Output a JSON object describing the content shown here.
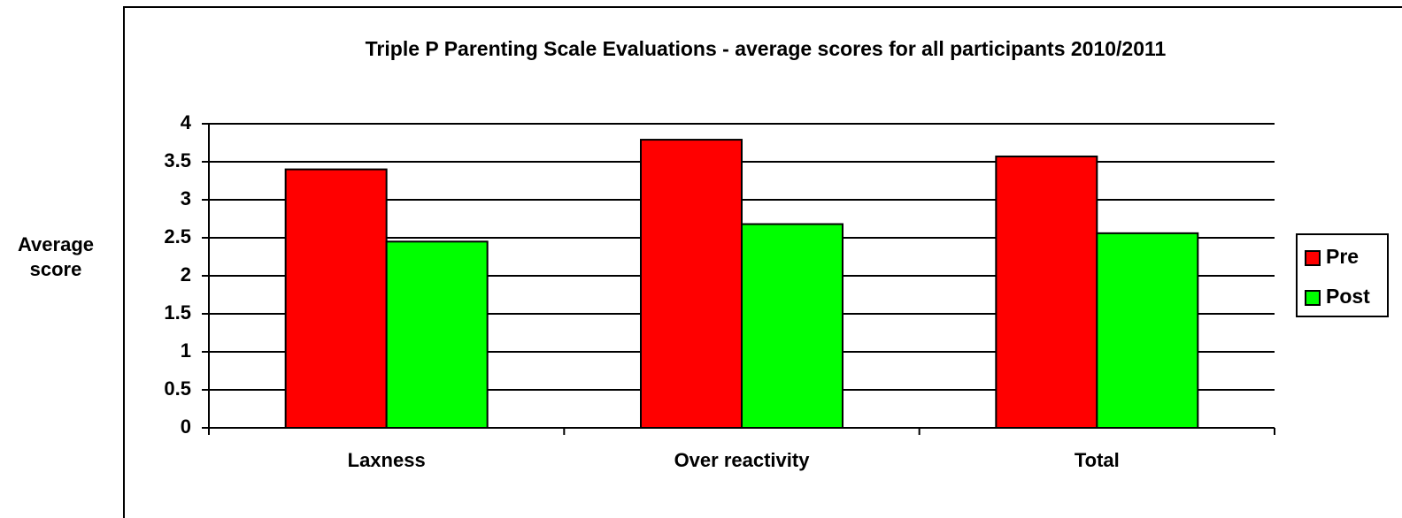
{
  "chart_data": {
    "type": "bar",
    "title": "Triple P Parenting Scale Evaluations - average scores for all participants 2010/2011",
    "y_label": "Average score",
    "categories": [
      "Laxness",
      "Over reactivity",
      "Total"
    ],
    "series": [
      {
        "name": "Pre",
        "color": "#ff0000",
        "values": [
          3.4,
          3.79,
          3.57
        ]
      },
      {
        "name": "Post",
        "color": "#00ff00",
        "values": [
          2.45,
          2.68,
          2.56
        ]
      }
    ],
    "ylim": [
      0,
      4
    ],
    "yticks": [
      0,
      0.5,
      1,
      1.5,
      2,
      2.5,
      3,
      3.5,
      4
    ],
    "grid": true,
    "legend": "right"
  }
}
